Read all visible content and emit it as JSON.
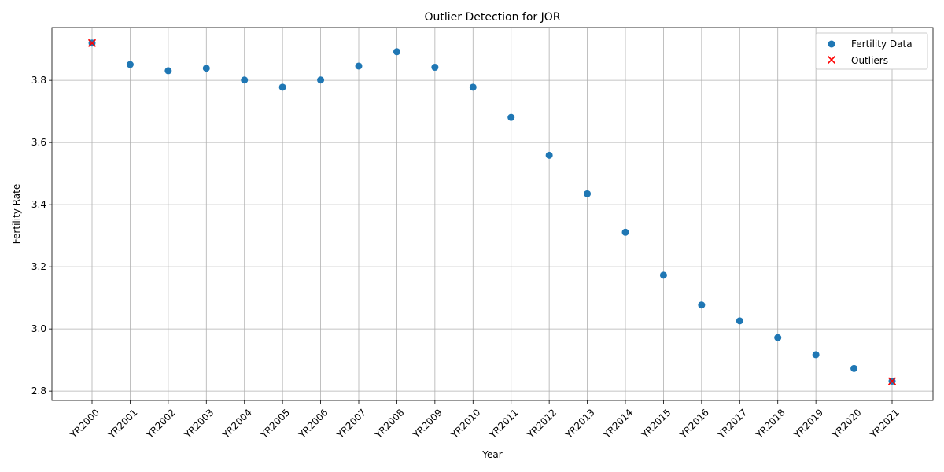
{
  "chart_data": {
    "type": "scatter",
    "title": "Outlier Detection for JOR",
    "xlabel": "Year",
    "ylabel": "Fertility Rate",
    "categories": [
      "YR2000",
      "YR2001",
      "YR2002",
      "YR2003",
      "YR2004",
      "YR2005",
      "YR2006",
      "YR2007",
      "YR2008",
      "YR2009",
      "YR2010",
      "YR2011",
      "YR2012",
      "YR2013",
      "YR2014",
      "YR2015",
      "YR2016",
      "YR2017",
      "YR2018",
      "YR2019",
      "YR2020",
      "YR2021"
    ],
    "ylim": [
      2.77,
      3.97
    ],
    "yticks": [
      "2.8",
      "3.0",
      "3.2",
      "3.4",
      "3.6",
      "3.8"
    ],
    "grid": true,
    "legend_position": "top-right",
    "series": [
      {
        "name": "Fertility Data",
        "marker": "circle",
        "color": "#1f77b4",
        "values": [
          3.92,
          3.851,
          3.831,
          3.839,
          3.801,
          3.778,
          3.801,
          3.846,
          3.892,
          3.842,
          3.778,
          3.681,
          3.559,
          3.435,
          3.311,
          3.173,
          3.077,
          3.026,
          2.972,
          2.917,
          2.873,
          2.832
        ]
      },
      {
        "name": "Outliers",
        "marker": "x",
        "color": "#ff0000",
        "points": [
          {
            "x": "YR2000",
            "y": 3.92
          },
          {
            "x": "YR2021",
            "y": 2.832
          }
        ]
      }
    ]
  }
}
